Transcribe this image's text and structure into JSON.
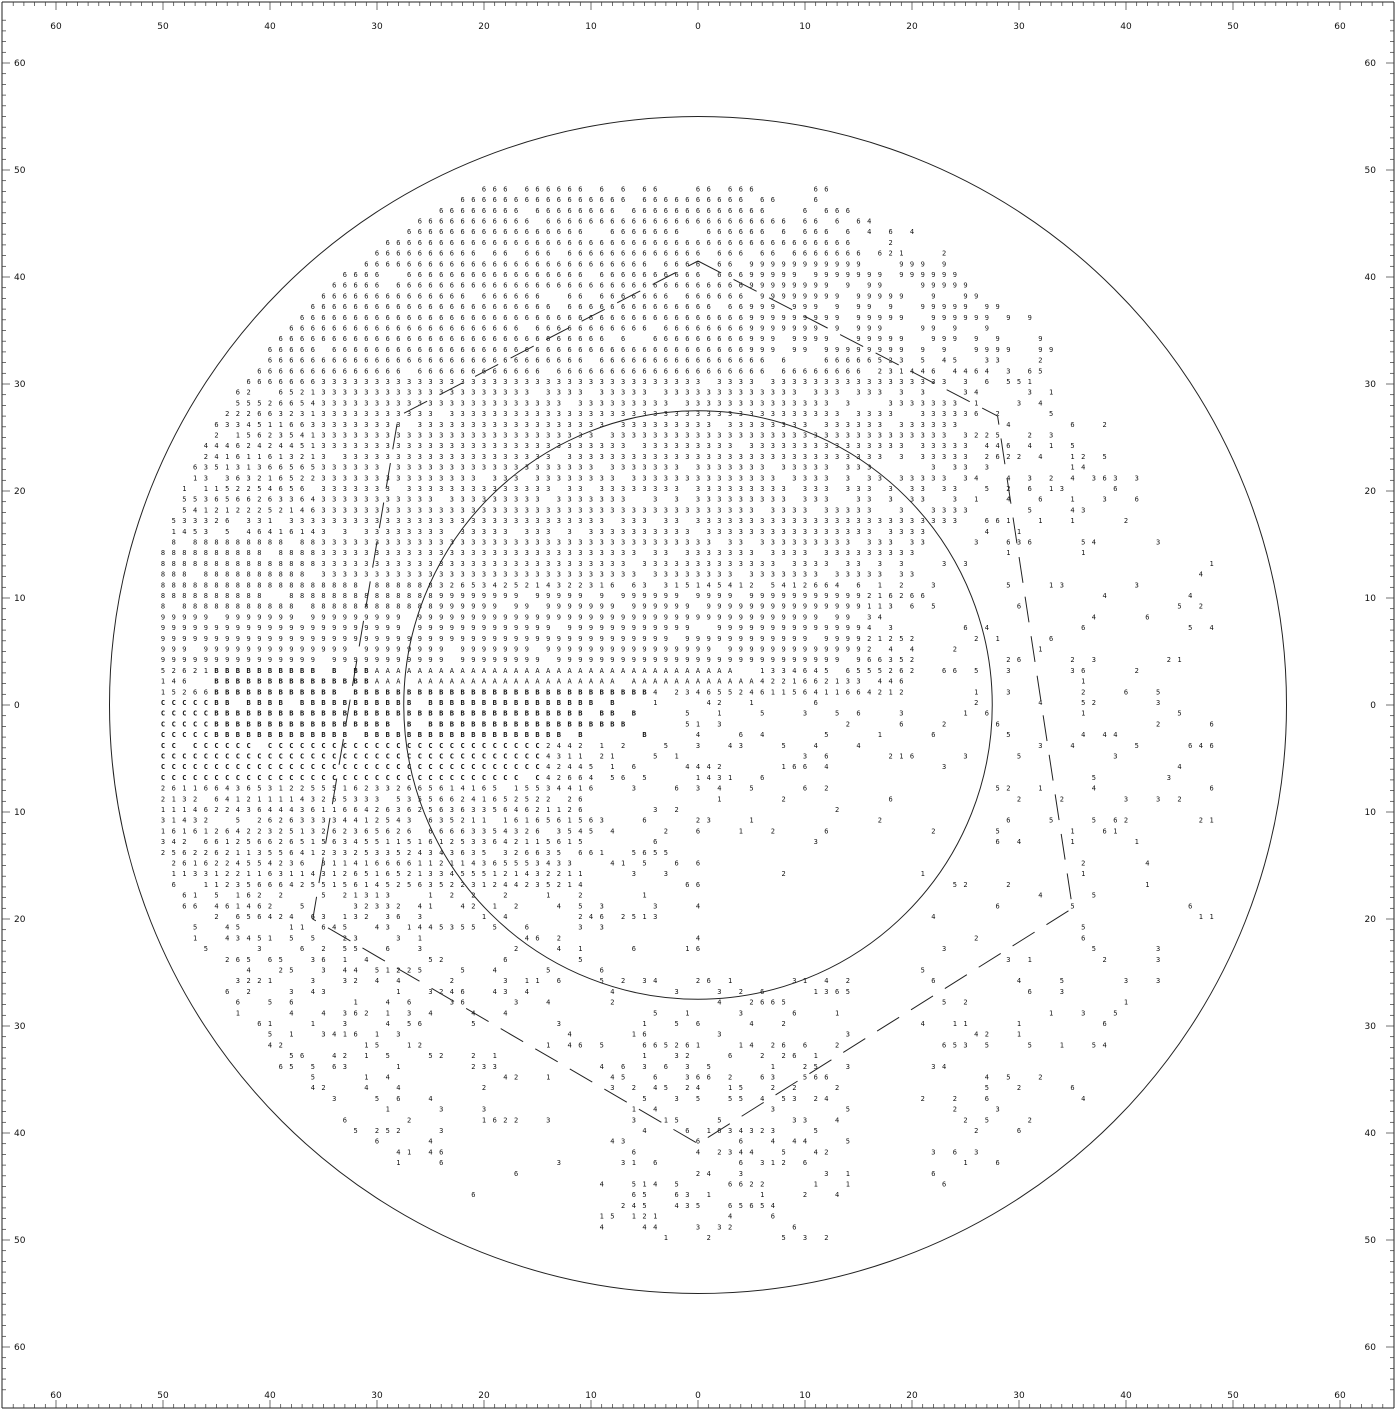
{
  "chart_data": {
    "type": "scatter",
    "title": "",
    "xlabel": "",
    "ylabel": "",
    "xlim": [
      -65,
      65
    ],
    "ylim": [
      -65,
      65
    ],
    "xticks": [
      -60,
      -50,
      -40,
      -30,
      -20,
      -10,
      0,
      10,
      20,
      30,
      40,
      50,
      60
    ],
    "yticks": [
      -60,
      -50,
      -40,
      -30,
      -20,
      -10,
      0,
      10,
      20,
      30,
      40,
      50,
      60
    ],
    "grid": false,
    "legend": "none",
    "outer_circle": {
      "cx": 0,
      "cy": 0,
      "r": 55
    },
    "inner_circle": {
      "cx": 0,
      "cy": 0,
      "r": 27.5
    },
    "dashed_outline": [
      [
        0,
        41.5
      ],
      [
        28,
        27
      ],
      [
        35,
        -19
      ],
      [
        0,
        -41
      ],
      [
        -36,
        -20
      ],
      [
        -28,
        27
      ],
      [
        0,
        41.5
      ]
    ],
    "symbol_scale": [
      "1",
      "2",
      "3",
      "4",
      "5",
      "6",
      "8",
      "9",
      "A",
      "B",
      "C"
    ],
    "level_regions": [
      {
        "symbol": "C",
        "x": [
          -50,
          -15
        ],
        "y": [
          -7,
          0
        ]
      },
      {
        "symbol": "B",
        "x": [
          -45,
          -5
        ],
        "y": [
          -3,
          4
        ]
      },
      {
        "symbol": "A",
        "x": [
          -30,
          5
        ],
        "y": [
          2,
          8
        ]
      },
      {
        "symbol": "9",
        "x": [
          -50,
          15
        ],
        "y": [
          4,
          10
        ]
      },
      {
        "symbol": "8",
        "x": [
          -50,
          -25
        ],
        "y": [
          9,
          15
        ]
      },
      {
        "symbol": "6",
        "x": [
          -45,
          15
        ],
        "y": [
          30,
          48
        ]
      },
      {
        "symbol": "3",
        "x": [
          -35,
          25
        ],
        "y": [
          12,
          30
        ]
      },
      {
        "symbol": "9",
        "x": [
          5,
          35
        ],
        "y": [
          33,
          41
        ]
      }
    ]
  }
}
